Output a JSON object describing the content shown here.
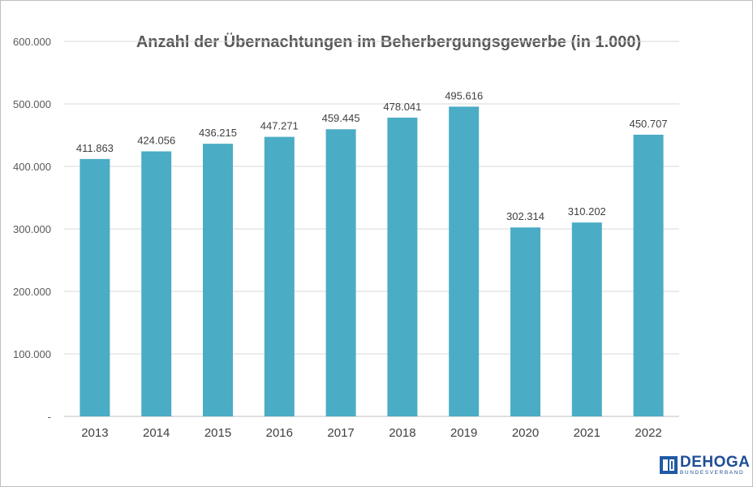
{
  "chart_data": {
    "type": "bar",
    "title": "Anzahl der Übernachtungen im Beherbergungsgewerbe (in 1.000)",
    "categories": [
      "2013",
      "2014",
      "2015",
      "2016",
      "2017",
      "2018",
      "2019",
      "2020",
      "2021",
      "2022"
    ],
    "values": [
      411863,
      424056,
      436215,
      447271,
      459445,
      478041,
      495616,
      302314,
      310202,
      450707
    ],
    "data_labels": [
      "411.863",
      "424.056",
      "436.215",
      "447.271",
      "459.445",
      "478.041",
      "495.616",
      "302.314",
      "310.202",
      "450.707"
    ],
    "ylim": [
      0,
      600000
    ],
    "yticks": [
      0,
      100000,
      200000,
      300000,
      400000,
      500000,
      600000
    ],
    "ytick_labels": [
      "-",
      "100.000",
      "200.000",
      "300.000",
      "400.000",
      "500.000",
      "600.000"
    ],
    "bar_color": "#4bacc6",
    "grid": true,
    "legend": "none"
  },
  "logo": {
    "name": "DEHOGA",
    "subtitle": "BUNDESVERBAND"
  }
}
